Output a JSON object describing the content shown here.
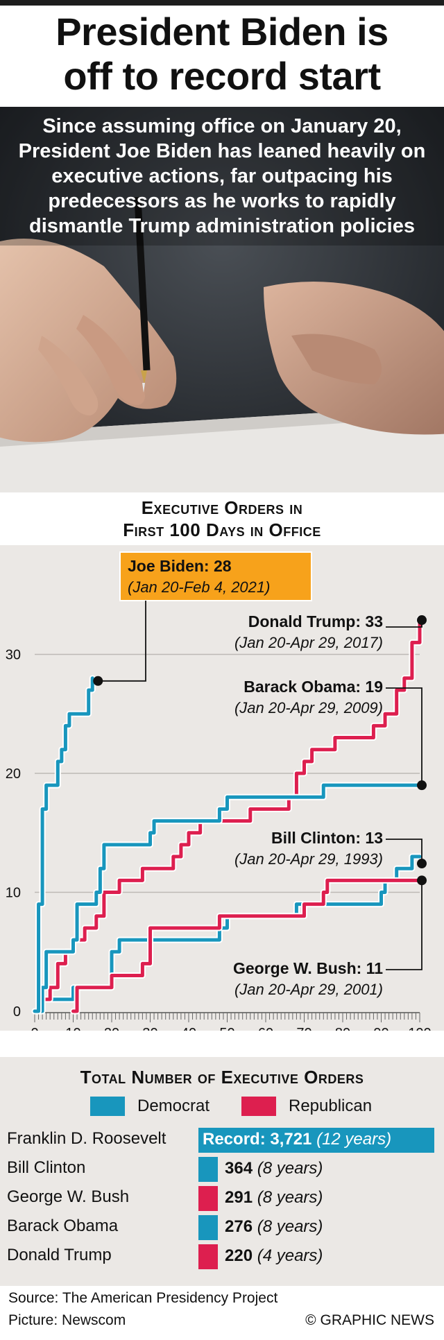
{
  "headline": [
    "President Biden is",
    "off to record start"
  ],
  "intro": "Since assuming office on January 20, President Joe Biden has leaned heavily on executive actions, far outpacing his predecessors as he works to rapidly dismantle Trump administration policies",
  "colors": {
    "democrat": "#1896bd",
    "republican": "#dd1f4f",
    "biden_label": "#f7a21b",
    "panel": "#ebe8e5"
  },
  "chart_title": [
    "Executive Orders in",
    "First 100 Days in Office"
  ],
  "chart_data": {
    "type": "line",
    "xlim": [
      0,
      100
    ],
    "ylim": [
      0,
      33
    ],
    "x_ticks": [
      "0",
      "10",
      "20",
      "30",
      "40",
      "50",
      "60",
      "70",
      "80",
      "90",
      "100"
    ],
    "y_ticks": [
      "0",
      "10",
      "20",
      "30"
    ],
    "grid": true,
    "series": [
      {
        "name": "Joe Biden",
        "party": "democrat",
        "final": "28",
        "period": "(Jan 20-Feb 4, 2021)",
        "points": [
          [
            0,
            0
          ],
          [
            1,
            9
          ],
          [
            2,
            17
          ],
          [
            3,
            19
          ],
          [
            6,
            21
          ],
          [
            7,
            22
          ],
          [
            8,
            24
          ],
          [
            9,
            25
          ],
          [
            14,
            27
          ],
          [
            15,
            28
          ]
        ]
      },
      {
        "name": "Donald Trump",
        "party": "republican",
        "final": "33",
        "period": "(Jan 20-Apr 29, 2017)",
        "points": [
          [
            0,
            0
          ],
          [
            2,
            1
          ],
          [
            4,
            2
          ],
          [
            6,
            4
          ],
          [
            8,
            5
          ],
          [
            10,
            6
          ],
          [
            13,
            7
          ],
          [
            16,
            8
          ],
          [
            18,
            10
          ],
          [
            22,
            11
          ],
          [
            28,
            12
          ],
          [
            33,
            12
          ],
          [
            36,
            13
          ],
          [
            38,
            14
          ],
          [
            40,
            15
          ],
          [
            43,
            16
          ],
          [
            48,
            16
          ],
          [
            52,
            16
          ],
          [
            56,
            17
          ],
          [
            60,
            17
          ],
          [
            66,
            18
          ],
          [
            68,
            20
          ],
          [
            70,
            21
          ],
          [
            72,
            22
          ],
          [
            78,
            23
          ],
          [
            88,
            24
          ],
          [
            91,
            25
          ],
          [
            94,
            27
          ],
          [
            96,
            28
          ],
          [
            98,
            31
          ],
          [
            100,
            33
          ]
        ]
      },
      {
        "name": "Barack Obama",
        "party": "democrat",
        "final": "19",
        "period": "(Jan 20-Apr 29, 2009)",
        "points": [
          [
            0,
            0
          ],
          [
            2,
            2
          ],
          [
            3,
            5
          ],
          [
            10,
            6
          ],
          [
            11,
            9
          ],
          [
            16,
            10
          ],
          [
            17,
            12
          ],
          [
            18,
            14
          ],
          [
            30,
            15
          ],
          [
            31,
            16
          ],
          [
            48,
            17
          ],
          [
            50,
            18
          ],
          [
            75,
            19
          ],
          [
            100,
            19
          ]
        ]
      },
      {
        "name": "Bill Clinton",
        "party": "democrat",
        "final": "13",
        "period": "(Jan 20-Apr 29, 1993)",
        "points": [
          [
            0,
            0
          ],
          [
            1,
            1
          ],
          [
            10,
            2
          ],
          [
            20,
            5
          ],
          [
            22,
            6
          ],
          [
            48,
            7
          ],
          [
            50,
            8
          ],
          [
            68,
            9
          ],
          [
            73,
            9
          ],
          [
            90,
            10
          ],
          [
            91,
            11
          ],
          [
            94,
            12
          ],
          [
            98,
            13
          ],
          [
            100,
            13
          ]
        ]
      },
      {
        "name": "George W. Bush",
        "party": "republican",
        "final": "11",
        "period": "(Jan 20-Apr 29, 2001)",
        "points": [
          [
            10,
            0
          ],
          [
            11,
            2
          ],
          [
            20,
            3
          ],
          [
            28,
            4
          ],
          [
            30,
            7
          ],
          [
            48,
            8
          ],
          [
            70,
            9
          ],
          [
            72,
            9
          ],
          [
            75,
            10
          ],
          [
            76,
            11
          ],
          [
            100,
            11
          ]
        ]
      }
    ]
  },
  "totals": {
    "title": "Total Number of Executive Orders",
    "legend": [
      "Democrat",
      "Republican"
    ],
    "max_value": 3721,
    "rows": [
      {
        "name": "Franklin D. Roosevelt",
        "value": 3721,
        "value_text": "Record: 3,721",
        "years": "(12 years)",
        "party": "democrat"
      },
      {
        "name": "Bill Clinton",
        "value": 364,
        "value_text": "364",
        "years": "(8 years)",
        "party": "democrat"
      },
      {
        "name": "George W. Bush",
        "value": 291,
        "value_text": "291",
        "years": "(8 years)",
        "party": "republican"
      },
      {
        "name": "Barack Obama",
        "value": 276,
        "value_text": "276",
        "years": "(8 years)",
        "party": "democrat"
      },
      {
        "name": "Donald Trump",
        "value": 220,
        "value_text": "220",
        "years": "(4 years)",
        "party": "republican"
      }
    ]
  },
  "footer": {
    "source": "Source: The American Presidency Project",
    "picture": "Picture: Newscom",
    "credit": "© GRAPHIC NEWS"
  }
}
